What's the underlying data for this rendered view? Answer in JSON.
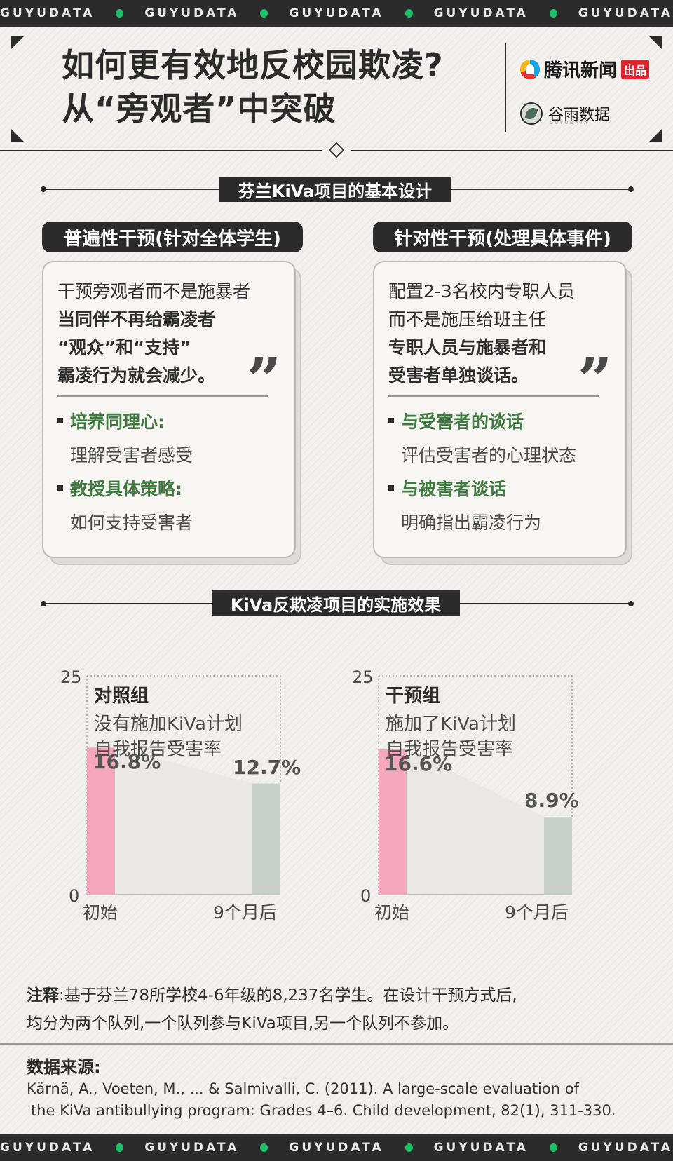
{
  "band": {
    "word": "GUYUDATA"
  },
  "header": {
    "title_line1": "如何更有效地反校园欺凌?",
    "title_line2": "从“旁观者”中突破",
    "brand1_name": "腾讯新闻",
    "brand1_tag": "出品",
    "brand2_name": "谷雨数据",
    "brand2_sub": "GUYUDATA"
  },
  "section1": {
    "title": "芬兰KiVa项目的基本设计",
    "left": {
      "pill": "普遍性干预(针对全体学生)",
      "line1": "干预旁观者而不是施暴者",
      "line2": "当同伴不再给霸凌者",
      "line3": "“观众”和“支持”",
      "line4": "霸凌行为就会减少。",
      "bullet1": "培养同理心:",
      "sub1": "理解受害者感受",
      "bullet2": "教授具体策略:",
      "sub2": "如何支持受害者"
    },
    "right": {
      "pill": "针对性干预(处理具体事件)",
      "line1": "配置2-3名校内专职人员",
      "line2": "而不是施压给班主任",
      "line3": "专职人员与施暴者和",
      "line4": "受害者单独谈话。",
      "bullet1": "与受害者的谈话",
      "sub1": "评估受害者的心理状态",
      "bullet2": "与被害者谈话",
      "sub2": "明确指出霸凌行为"
    }
  },
  "section2": {
    "title": "KiVa反欺凌项目的实施效果"
  },
  "colors": {
    "pink": "#f4a7bd",
    "gray": "#c8d0ca",
    "area": "#e9e8e5"
  },
  "chart_data": [
    {
      "type": "bar",
      "title": "对照组",
      "subtitle1": "没有施加KiVa计划",
      "subtitle2": "自我报告受害率",
      "categories": [
        "初始",
        "9个月后"
      ],
      "values": [
        16.8,
        12.7
      ],
      "labels": [
        "16.8%",
        "12.7%"
      ],
      "ylim": [
        0,
        25
      ],
      "yticks": [
        "0",
        "25"
      ]
    },
    {
      "type": "bar",
      "title": "干预组",
      "subtitle1": "施加了KiVa计划",
      "subtitle2": "自我报告受害率",
      "categories": [
        "初始",
        "9个月后"
      ],
      "values": [
        16.6,
        8.9
      ],
      "labels": [
        "16.6%",
        "8.9%"
      ],
      "ylim": [
        0,
        25
      ],
      "yticks": [
        "0",
        "25"
      ]
    }
  ],
  "note": {
    "label": "注释",
    "text1": ":基于芬兰78所学校4-6年级的8,237名学生。在设计干预方式后,",
    "text2": "均分为两个队列,一个队列参与KiVa项目,另一个队列不参加。"
  },
  "source": {
    "label": "数据来源:",
    "line1": "Kärnä, A., Voeten, M., ... & Salmivalli, C. (2011). A large‐scale evaluation of",
    "line2": "the KiVa antibullying program: Grades 4–6. Child development, 82(1), 311-330."
  }
}
